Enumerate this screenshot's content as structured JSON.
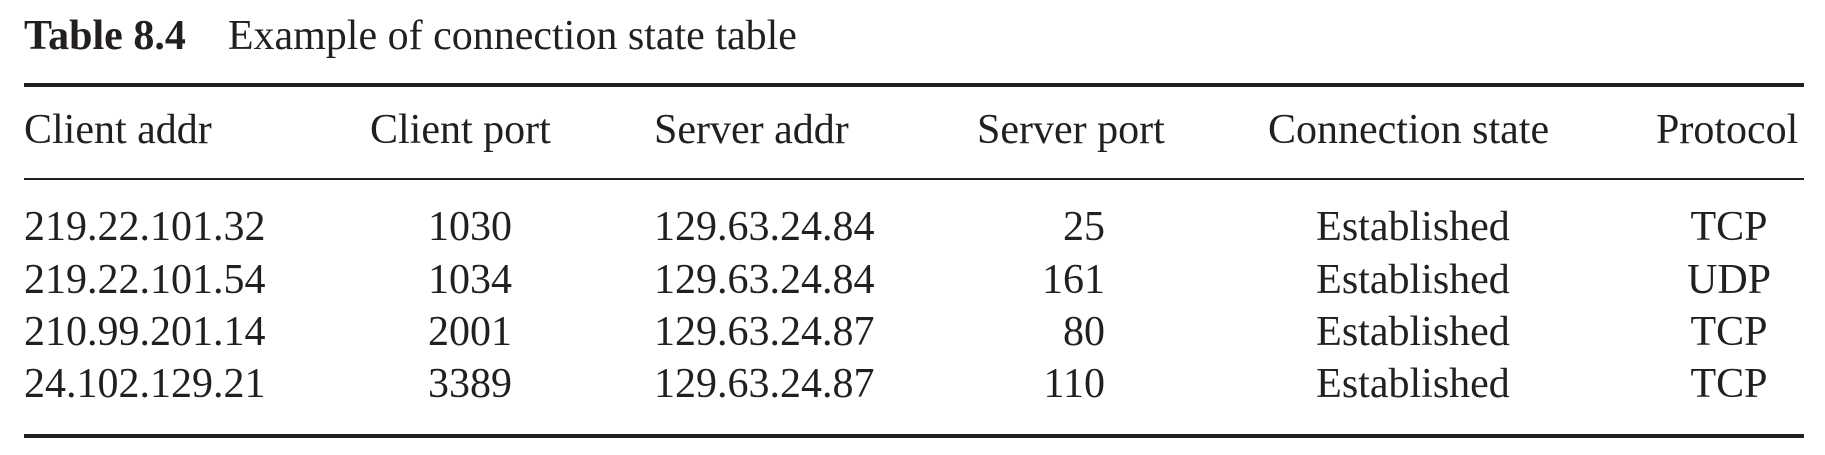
{
  "table": {
    "number": "Table 8.4",
    "title": "Example of connection state table",
    "headers": [
      "Client addr",
      "Client port",
      "Server addr",
      "Server port",
      "Connection state",
      "Protocol"
    ],
    "rows": [
      [
        "219.22.101.32",
        "1030",
        "129.63.24.84",
        "25",
        "Established",
        "TCP"
      ],
      [
        "219.22.101.54",
        "1034",
        "129.63.24.84",
        "161",
        "Established",
        "UDP"
      ],
      [
        "210.99.201.14",
        "2001",
        "129.63.24.87",
        "80",
        "Established",
        "TCP"
      ],
      [
        "24.102.129.21",
        "3389",
        "129.63.24.87",
        "110",
        "Established",
        "TCP"
      ]
    ]
  }
}
